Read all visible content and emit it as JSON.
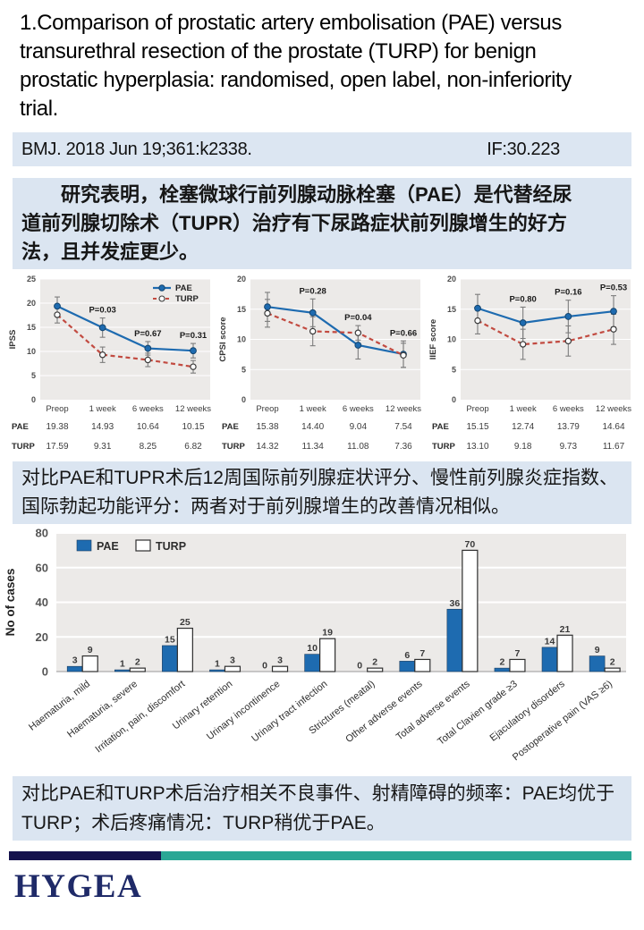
{
  "title": "1.Comparison of prostatic artery embolisation (PAE) versus\ntransurethral resection of the prostate (TURP) for benign\nprostatic hyperplasia: randomised, open label, non-inferiority\ntrial.",
  "citation": {
    "ref": "BMJ. 2018 Jun 19;361:k2338.",
    "impact_factor": "IF:30.223"
  },
  "summaries": {
    "top": "　　研究表明，栓塞微球行前列腺动脉栓塞（PAE）是代替经尿\n道前列腺切除术（TUPR）治疗有下尿路症状前列腺增生的好方\n法，且并发症更少。",
    "middle": "对比PAE和TUPR术后12周国际前列腺症状评分、慢性前列腺炎症指数、\n国际勃起功能评分：两者对于前列腺增生的改善情况相似。",
    "bottom": "对比PAE和TURP术后治疗相关不良事件、射精障碍的频率：PAE均优于\nTURP；术后疼痛情况：TURP稍优于PAE。"
  },
  "logo": {
    "text": "HYGEA"
  },
  "colors": {
    "pae_blue": "#1e6bb0",
    "turp_red": "#c24b41",
    "panel_blue": "#dbe5f1",
    "plot_gray": "#eceae8",
    "navy": "#15124d",
    "teal": "#2aa795",
    "logo_navy": "#1f2a68"
  },
  "chart_data": [
    {
      "type": "line",
      "ylabel": "IPSS",
      "ylim": [
        0,
        25
      ],
      "yticks": [
        0,
        5,
        10,
        15,
        20,
        25
      ],
      "categories": [
        "Preop",
        "1 week",
        "6 weeks",
        "12 weeks"
      ],
      "legend": true,
      "legend_position": "top-right",
      "grid": true,
      "series": [
        {
          "name": "PAE",
          "values": [
            19.38,
            14.93,
            10.64,
            10.15
          ],
          "err": [
            1.9,
            2.0,
            1.4,
            1.5
          ]
        },
        {
          "name": "TURP",
          "values": [
            17.59,
            9.31,
            8.25,
            6.82
          ],
          "err": [
            1.7,
            1.6,
            1.4,
            1.3
          ]
        }
      ],
      "p_values": [
        null,
        "P=0.03",
        "P=0.67",
        "P=0.31"
      ]
    },
    {
      "type": "line",
      "ylabel": "CPSI score",
      "ylim": [
        0,
        20
      ],
      "yticks": [
        0,
        5,
        10,
        15,
        20
      ],
      "categories": [
        "Preop",
        "1 week",
        "6 weeks",
        "12 weeks"
      ],
      "legend": false,
      "grid": true,
      "series": [
        {
          "name": "PAE",
          "values": [
            15.38,
            14.4,
            9.04,
            7.54
          ],
          "err": [
            2.4,
            2.3,
            2.3,
            2.2
          ]
        },
        {
          "name": "TURP",
          "values": [
            14.32,
            11.34,
            11.08,
            7.36
          ],
          "err": [
            2.3,
            2.4,
            1.2,
            2.0
          ]
        }
      ],
      "p_values": [
        null,
        "P=0.28",
        "P=0.04",
        "P=0.66"
      ]
    },
    {
      "type": "line",
      "ylabel": "IIEF score",
      "ylim": [
        0,
        20
      ],
      "yticks": [
        0,
        5,
        10,
        15,
        20
      ],
      "categories": [
        "Preop",
        "1 week",
        "6 weeks",
        "12 weeks"
      ],
      "legend": false,
      "grid": true,
      "series": [
        {
          "name": "PAE",
          "values": [
            15.15,
            12.74,
            13.79,
            14.64
          ],
          "err": [
            2.3,
            2.6,
            2.7,
            2.6
          ]
        },
        {
          "name": "TURP",
          "values": [
            13.1,
            9.18,
            9.73,
            11.67
          ],
          "err": [
            2.2,
            2.5,
            2.5,
            2.5
          ]
        }
      ],
      "p_values": [
        null,
        "P=0.80",
        "P=0.16",
        "P=0.53"
      ]
    },
    {
      "type": "bar",
      "ylabel": "No of cases",
      "ylim": [
        0,
        80
      ],
      "yticks": [
        0,
        20,
        40,
        60,
        80
      ],
      "legend_position": "top-left",
      "grid": true,
      "categories": [
        "Haematuria, mild",
        "Haematuria, severe",
        "Irritation, pain, discomfort",
        "Urinary retention",
        "Urinary incontinence",
        "Urinary tract infection",
        "Strictures (meatal)",
        "Other adverse events",
        "Total adverse events",
        "Total Clavien grade ≥3",
        "Ejaculatory disorders",
        "Postoperative pain (VAS ≥6)"
      ],
      "series": [
        {
          "name": "PAE",
          "values": [
            3,
            1,
            15,
            1,
            0,
            10,
            0,
            6,
            36,
            2,
            14,
            9
          ]
        },
        {
          "name": "TURP",
          "values": [
            9,
            2,
            25,
            3,
            3,
            19,
            2,
            7,
            70,
            7,
            21,
            2
          ]
        }
      ]
    }
  ]
}
